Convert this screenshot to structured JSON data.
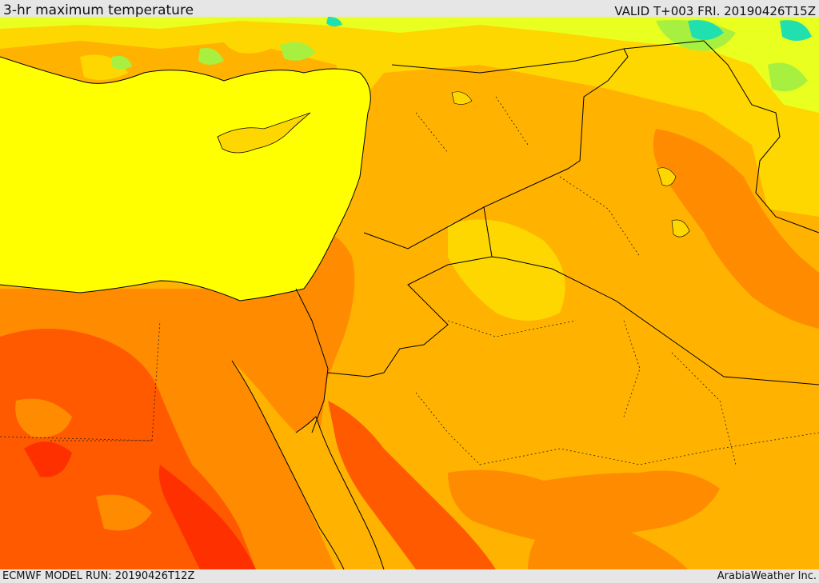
{
  "header": {
    "title": "3-hr maximum temperature",
    "valid": "VALID T+003 FRI. 20190426T15Z"
  },
  "footer": {
    "model_run": "ECMWF MODEL RUN: 20190426T12Z",
    "credit": "ArabiaWeather Inc."
  },
  "colors": {
    "sea": "#ffff00",
    "band_warm_light": "#ffd700",
    "band_warm": "#ffb300",
    "band_hot": "#ff8c00",
    "band_very_hot": "#ff5a00",
    "band_extreme": "#ff3000",
    "band_cool": "#e8ff20",
    "band_green_light": "#a8f040",
    "band_green": "#40e070",
    "band_cyan": "#20e0b0",
    "border": "#000000"
  }
}
